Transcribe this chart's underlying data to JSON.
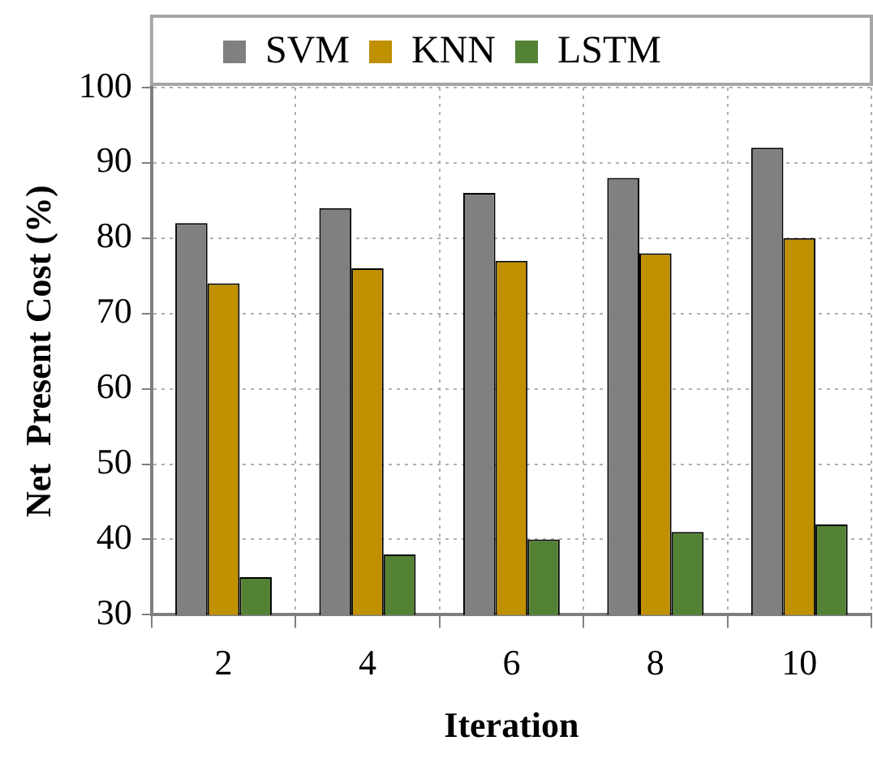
{
  "chart_data": {
    "type": "bar",
    "xlabel": "Iteration",
    "ylabel": "Net  Present Cost (%)",
    "categories": [
      "2",
      "4",
      "6",
      "8",
      "10"
    ],
    "series": [
      {
        "name": "SVM",
        "color": "#808080",
        "values": [
          82,
          84,
          86,
          88,
          92
        ]
      },
      {
        "name": "KNN",
        "color": "#bf9000",
        "values": [
          74,
          76,
          77,
          78,
          80
        ]
      },
      {
        "name": "LSTM",
        "color": "#548235",
        "values": [
          35,
          38,
          40,
          41,
          42
        ]
      }
    ],
    "ylim": [
      30,
      100
    ],
    "yticks": [
      30,
      40,
      50,
      60,
      70,
      80,
      90,
      100
    ],
    "grid": true,
    "legend": "top"
  }
}
